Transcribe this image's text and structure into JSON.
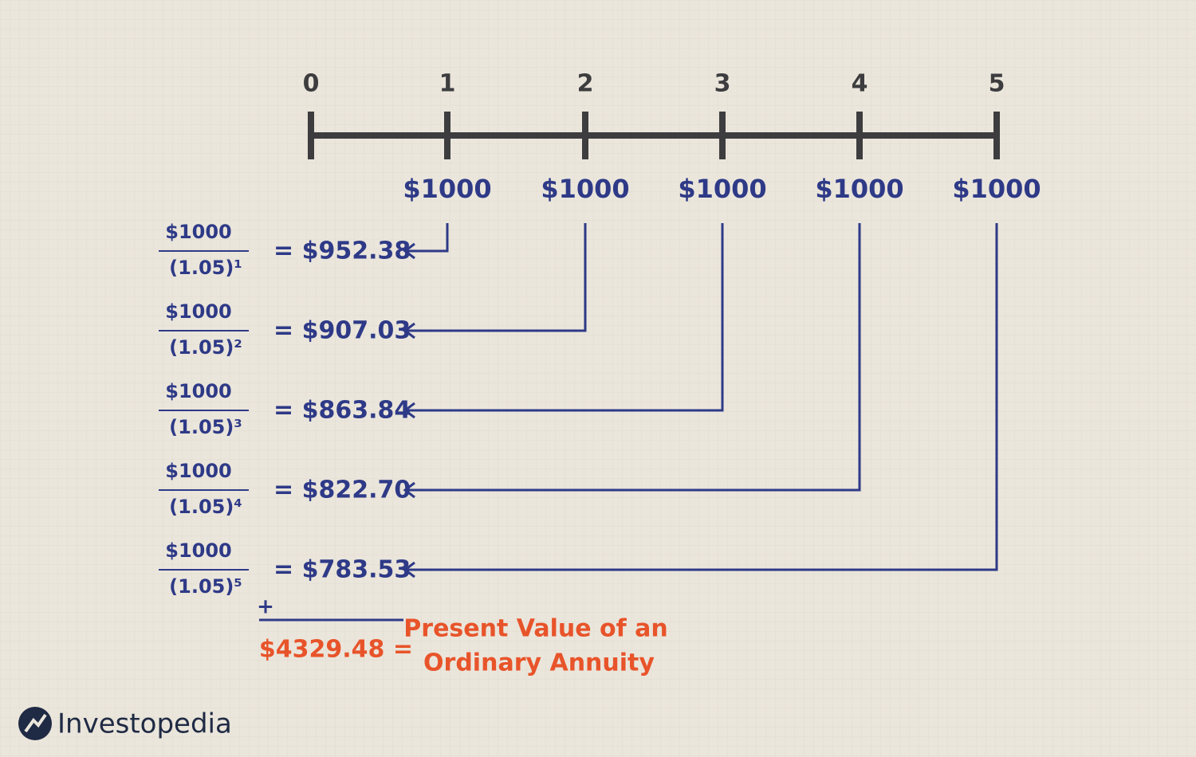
{
  "timeline": {
    "ticks": [
      "0",
      "1",
      "2",
      "3",
      "4",
      "5"
    ],
    "payments": [
      "$1000",
      "$1000",
      "$1000",
      "$1000",
      "$1000"
    ]
  },
  "rows": [
    {
      "numerator": "$1000",
      "denominator": "(1.05)¹",
      "result": "= $952.38"
    },
    {
      "numerator": "$1000",
      "denominator": "(1.05)²",
      "result": "= $907.03"
    },
    {
      "numerator": "$1000",
      "denominator": "(1.05)³",
      "result": "= $863.84"
    },
    {
      "numerator": "$1000",
      "denominator": "(1.05)⁴",
      "result": "= $822.70"
    },
    {
      "numerator": "$1000",
      "denominator": "(1.05)⁵",
      "result": "= $783.53"
    }
  ],
  "sum": {
    "operator": "+",
    "total": "$4329.48 =",
    "label": [
      "Present Value of an",
      "Ordinary Annuity"
    ]
  },
  "logo": {
    "text": "Investopedia"
  }
}
